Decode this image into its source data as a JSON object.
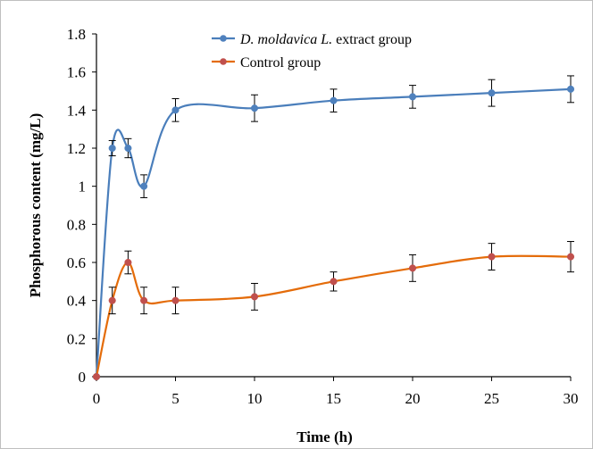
{
  "chart_data": {
    "type": "line",
    "xlabel": "Time (h)",
    "ylabel": "Phosphorous content (mg/L)",
    "xlim": [
      0,
      30
    ],
    "ylim": [
      0,
      1.8
    ],
    "xticks": [
      "0",
      "5",
      "10",
      "15",
      "20",
      "25",
      "30"
    ],
    "yticks": [
      "0",
      "0.2",
      "0.4",
      "0.6",
      "0.8",
      "1",
      "1.2",
      "1.4",
      "1.6",
      "1.8"
    ],
    "grid": false,
    "legend_position": "top-center",
    "x": [
      0,
      1,
      2,
      3,
      5,
      10,
      15,
      20,
      25,
      30
    ],
    "series": [
      {
        "name": "D. moldavica L. extract group",
        "name_italic": "D. moldavica L.",
        "name_rest": " extract group",
        "color": "#4a7ebb",
        "marker_color": "#4f81bd",
        "values": [
          0,
          1.2,
          1.2,
          1.0,
          1.4,
          1.41,
          1.45,
          1.47,
          1.49,
          1.51
        ],
        "errors": [
          0,
          0.04,
          0.05,
          0.06,
          0.06,
          0.07,
          0.06,
          0.06,
          0.07,
          0.07
        ]
      },
      {
        "name": "Control group",
        "color": "#e46c0a",
        "marker_color": "#c0504d",
        "values": [
          0,
          0.4,
          0.6,
          0.4,
          0.4,
          0.42,
          0.5,
          0.57,
          0.63,
          0.63
        ],
        "errors": [
          0,
          0.07,
          0.06,
          0.07,
          0.07,
          0.07,
          0.05,
          0.07,
          0.07,
          0.08
        ]
      }
    ]
  }
}
